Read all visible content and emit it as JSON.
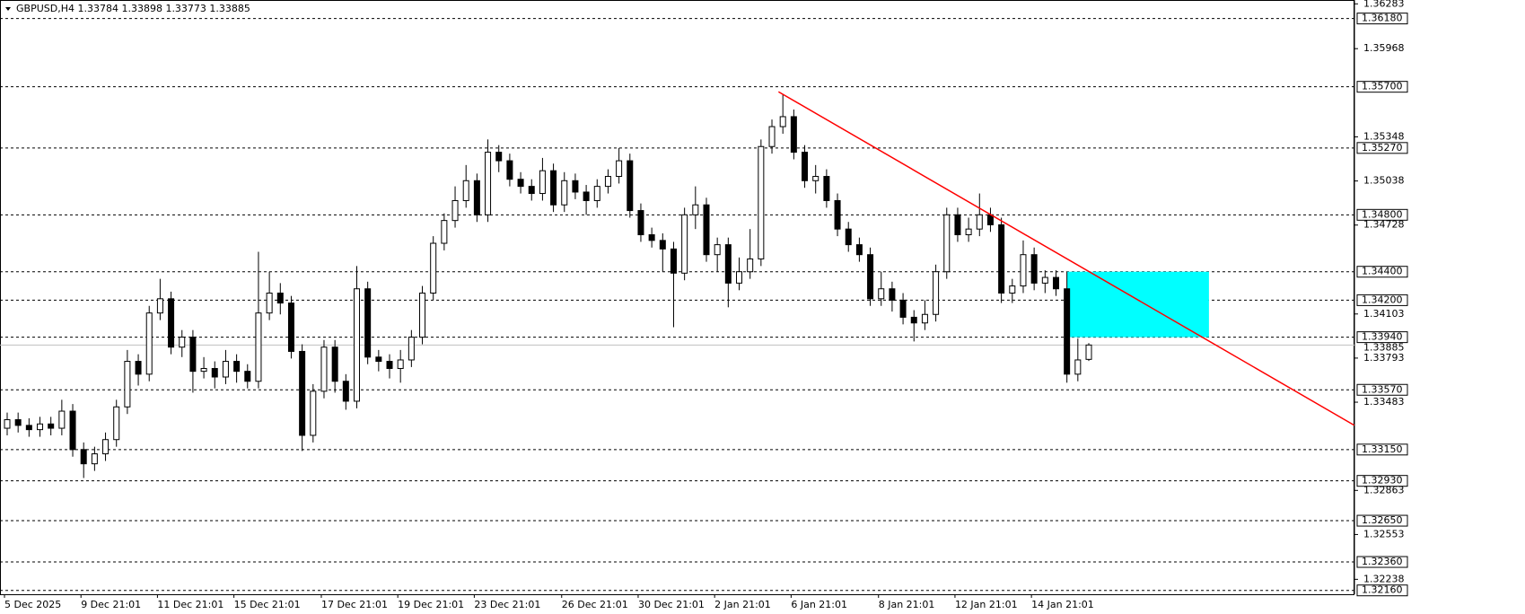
{
  "chart_data": {
    "type": "candlestick",
    "title": "GBPUSD,H4  1.33784 1.33898 1.33773 1.33885",
    "categories": [
      "5 Dec 2025",
      null,
      null,
      null,
      null,
      null,
      null,
      "9 Dec 21:01",
      null,
      null,
      null,
      null,
      null,
      null,
      "11 Dec 21:01",
      null,
      null,
      null,
      null,
      null,
      null,
      "15 Dec 21:01",
      null,
      null,
      null,
      null,
      null,
      null,
      null,
      "17 Dec 21:01",
      null,
      null,
      null,
      null,
      null,
      null,
      "19 Dec 21:01",
      null,
      null,
      null,
      null,
      null,
      null,
      "23 Dec 21:01",
      null,
      null,
      null,
      null,
      null,
      null,
      null,
      "26 Dec 21:01",
      null,
      null,
      null,
      null,
      null,
      null,
      "30 Dec 21:01",
      null,
      null,
      null,
      null,
      null,
      null,
      "2 Jan 21:01",
      null,
      null,
      null,
      null,
      null,
      null,
      "6 Jan 21:01",
      null,
      null,
      null,
      null,
      null,
      null,
      null,
      "8 Jan 21:01",
      null,
      null,
      null,
      null,
      null,
      null,
      "12 Jan 21:01",
      null,
      null,
      null,
      null,
      null,
      null,
      "14 Jan 21:01",
      null,
      null,
      null,
      null,
      null
    ],
    "open": [
      1.333,
      1.3336,
      1.3332,
      1.3329,
      1.3333,
      1.333,
      1.3342,
      1.3315,
      1.3305,
      1.3312,
      1.3322,
      1.3345,
      1.3377,
      1.3368,
      1.3411,
      1.3421,
      1.3387,
      1.3394,
      1.337,
      1.3372,
      1.3366,
      1.3377,
      1.337,
      1.3363,
      1.3411,
      1.3425,
      1.3418,
      1.3384,
      1.3325,
      1.3356,
      1.3387,
      1.3363,
      1.3349,
      1.3428,
      1.338,
      1.3377,
      1.3372,
      1.3378,
      1.3394,
      1.3425,
      1.346,
      1.3476,
      1.349,
      1.3504,
      1.348,
      1.3524,
      1.3518,
      1.3505,
      1.35,
      1.3495,
      1.3511,
      1.3487,
      1.3504,
      1.3496,
      1.349,
      1.35,
      1.3507,
      1.3518,
      1.3483,
      1.3466,
      1.3462,
      1.3456,
      1.3439,
      1.348,
      1.3487,
      1.3452,
      1.3459,
      1.3432,
      1.344,
      1.3449,
      1.3528,
      1.3542,
      1.3549,
      1.3524,
      1.3504,
      1.3507,
      1.349,
      1.347,
      1.3459,
      1.3452,
      1.3421,
      1.3428,
      1.342,
      1.3408,
      1.3404,
      1.341,
      1.344,
      1.348,
      1.3466,
      1.347,
      1.348,
      1.3473,
      1.3425,
      1.343,
      1.3452,
      1.3432,
      1.3436,
      1.3428,
      1.3368,
      1.33784
    ],
    "high": [
      1.3341,
      1.3341,
      1.3337,
      1.3338,
      1.3338,
      1.335,
      1.3347,
      1.332,
      1.3317,
      1.3327,
      1.335,
      1.3385,
      1.3382,
      1.3416,
      1.3435,
      1.3426,
      1.3399,
      1.3399,
      1.338,
      1.3377,
      1.3385,
      1.3382,
      1.3375,
      1.3454,
      1.344,
      1.3432,
      1.3423,
      1.3389,
      1.3361,
      1.3392,
      1.3392,
      1.3368,
      1.3444,
      1.3433,
      1.3385,
      1.3382,
      1.3385,
      1.3399,
      1.343,
      1.3465,
      1.3481,
      1.35,
      1.3515,
      1.3509,
      1.3533,
      1.3529,
      1.3523,
      1.351,
      1.3505,
      1.352,
      1.3516,
      1.351,
      1.3509,
      1.3501,
      1.3505,
      1.3512,
      1.3527,
      1.3523,
      1.3488,
      1.3471,
      1.3467,
      1.3461,
      1.3485,
      1.35,
      1.3492,
      1.3464,
      1.3464,
      1.345,
      1.347,
      1.3533,
      1.3547,
      1.3565,
      1.3554,
      1.3529,
      1.3515,
      1.3512,
      1.3495,
      1.3475,
      1.3464,
      1.3457,
      1.344,
      1.3433,
      1.3425,
      1.3413,
      1.342,
      1.3445,
      1.3485,
      1.3485,
      1.3478,
      1.3495,
      1.3485,
      1.3478,
      1.3435,
      1.3462,
      1.3457,
      1.3441,
      1.3441,
      1.344,
      1.3393,
      1.33898
    ],
    "low": [
      1.3325,
      1.3327,
      1.3324,
      1.3324,
      1.3325,
      1.3325,
      1.331,
      1.3295,
      1.33,
      1.3307,
      1.3317,
      1.334,
      1.336,
      1.3363,
      1.3406,
      1.3382,
      1.338,
      1.3355,
      1.3365,
      1.3358,
      1.3361,
      1.3362,
      1.3358,
      1.3358,
      1.3406,
      1.341,
      1.3379,
      1.3314,
      1.332,
      1.3351,
      1.3355,
      1.3343,
      1.3344,
      1.3375,
      1.337,
      1.3365,
      1.3362,
      1.3373,
      1.3389,
      1.342,
      1.3455,
      1.3471,
      1.3485,
      1.3475,
      1.3475,
      1.351,
      1.35,
      1.3495,
      1.349,
      1.349,
      1.3482,
      1.3482,
      1.3491,
      1.348,
      1.3485,
      1.3495,
      1.3502,
      1.3478,
      1.3461,
      1.3457,
      1.344,
      1.3401,
      1.3434,
      1.347,
      1.3447,
      1.344,
      1.3415,
      1.3427,
      1.3435,
      1.3444,
      1.3523,
      1.3537,
      1.3519,
      1.3499,
      1.3495,
      1.3485,
      1.3465,
      1.3454,
      1.3447,
      1.3416,
      1.3416,
      1.3412,
      1.3403,
      1.3391,
      1.3399,
      1.3405,
      1.3435,
      1.3461,
      1.3461,
      1.3465,
      1.3468,
      1.3418,
      1.3418,
      1.3425,
      1.3427,
      1.3425,
      1.3423,
      1.3362,
      1.3363,
      1.33773
    ],
    "close": [
      1.3336,
      1.3332,
      1.3329,
      1.3333,
      1.333,
      1.3342,
      1.3315,
      1.3305,
      1.3312,
      1.3322,
      1.3345,
      1.3377,
      1.3368,
      1.3411,
      1.3421,
      1.3387,
      1.3394,
      1.337,
      1.3372,
      1.3366,
      1.3377,
      1.337,
      1.3363,
      1.3411,
      1.3425,
      1.3418,
      1.3384,
      1.3325,
      1.3356,
      1.3387,
      1.3363,
      1.3349,
      1.3428,
      1.338,
      1.3377,
      1.3372,
      1.3378,
      1.3394,
      1.3425,
      1.346,
      1.3476,
      1.349,
      1.3504,
      1.348,
      1.3524,
      1.3518,
      1.3505,
      1.35,
      1.3495,
      1.3511,
      1.3487,
      1.3504,
      1.3496,
      1.349,
      1.35,
      1.3507,
      1.3518,
      1.3483,
      1.3466,
      1.3462,
      1.3456,
      1.3439,
      1.348,
      1.3487,
      1.3452,
      1.3459,
      1.3432,
      1.344,
      1.3449,
      1.3528,
      1.3542,
      1.3549,
      1.3524,
      1.3504,
      1.3507,
      1.349,
      1.347,
      1.3459,
      1.3452,
      1.3421,
      1.3428,
      1.342,
      1.3408,
      1.3404,
      1.341,
      1.344,
      1.348,
      1.3466,
      1.347,
      1.348,
      1.3473,
      1.3425,
      1.343,
      1.3452,
      1.3432,
      1.3436,
      1.3428,
      1.3368,
      1.3378,
      1.33885
    ],
    "ylim": [
      1.32133,
      1.3631
    ],
    "yticks": [
      1.36283,
      1.35968,
      1.35348,
      1.35038,
      1.34728,
      1.34103,
      1.33793,
      1.33483,
      1.32863,
      1.32553,
      1.32238
    ],
    "levels": [
      {
        "value": 1.3618,
        "label": "1.36180"
      },
      {
        "value": 1.357,
        "label": "1.35700"
      },
      {
        "value": 1.3527,
        "label": "1.35270"
      },
      {
        "value": 1.348,
        "label": "1.34800"
      },
      {
        "value": 1.344,
        "label": "1.34400"
      },
      {
        "value": 1.342,
        "label": "1.34200"
      },
      {
        "value": 1.3394,
        "label": "1.33940"
      },
      {
        "value": 1.3357,
        "label": "1.33570"
      },
      {
        "value": 1.3315,
        "label": "1.33150"
      },
      {
        "value": 1.3293,
        "label": "1.32930"
      },
      {
        "value": 1.3265,
        "label": "1.32650"
      },
      {
        "value": 1.3236,
        "label": "1.32360"
      },
      {
        "value": 1.3216,
        "label": "1.32160"
      }
    ],
    "current_price": 1.33885,
    "trendline": {
      "x": [
        70.6,
        123.3
      ],
      "y": [
        1.35665,
        1.33321
      ],
      "color": "#ff0000"
    },
    "zone": {
      "x": [
        97,
        110
      ],
      "y": [
        1.3394,
        1.344
      ],
      "color": "#00ffff"
    },
    "bull_color": "#ffffff",
    "bear_color": "#000000"
  }
}
